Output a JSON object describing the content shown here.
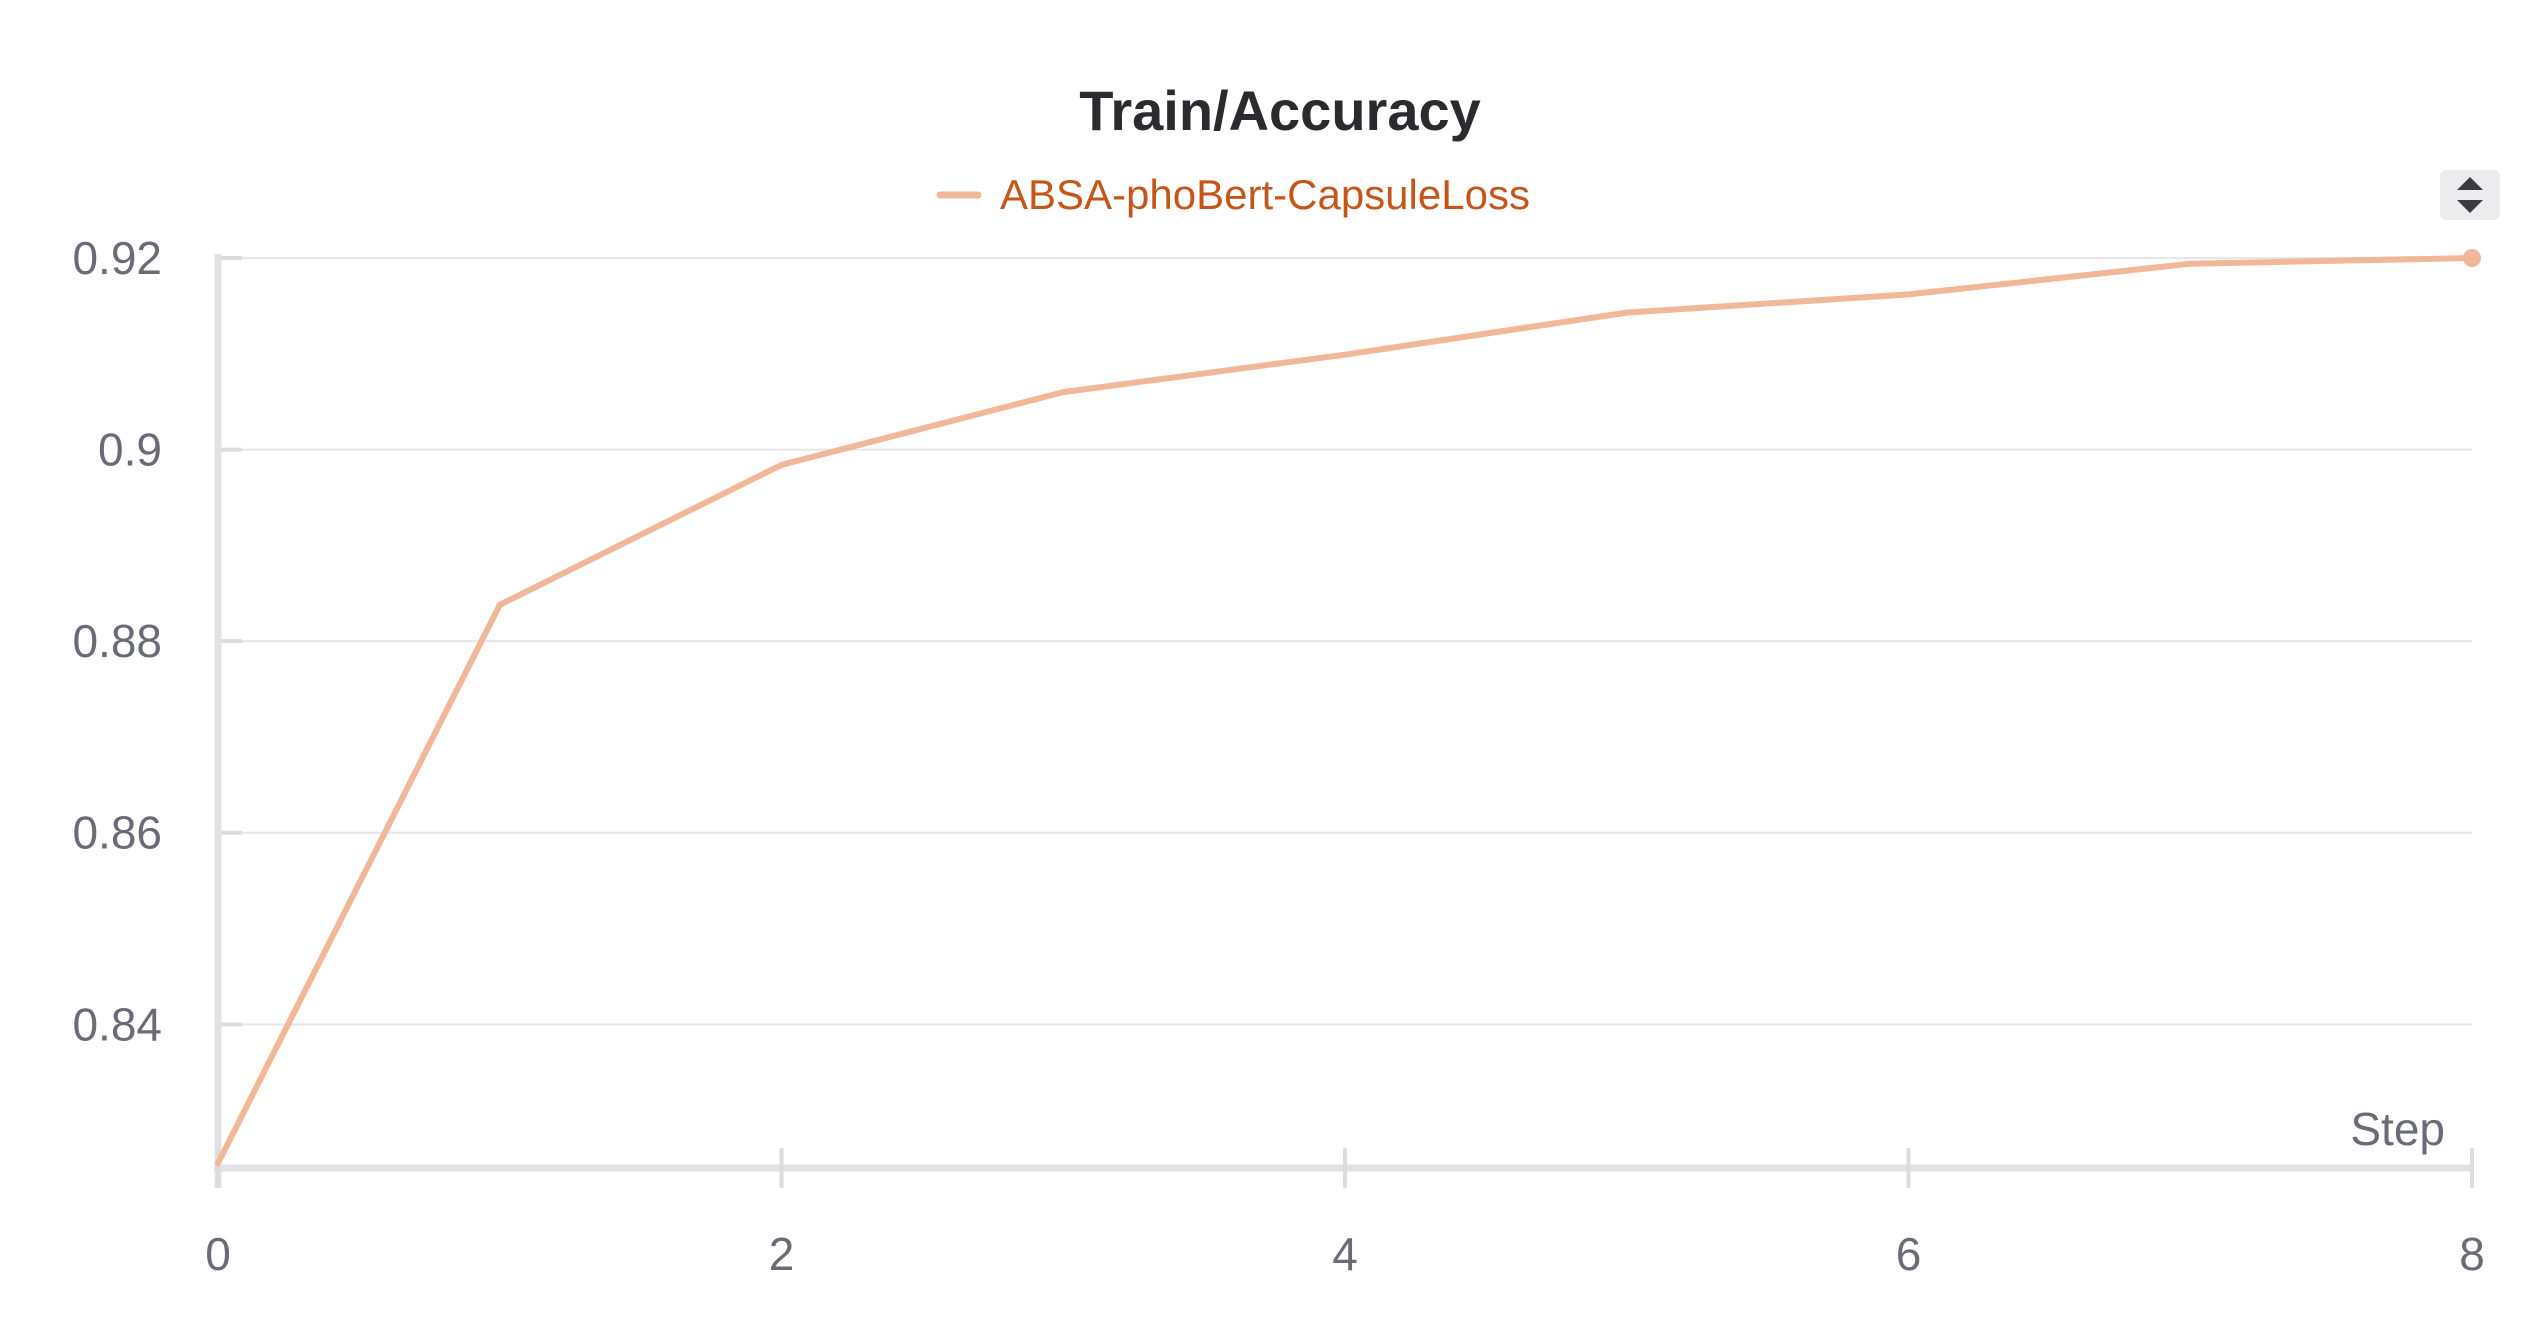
{
  "chart_data": {
    "type": "line",
    "title": "Train/Accuracy",
    "xlabel": "Step",
    "ylabel": "",
    "xlim": [
      0,
      8
    ],
    "ylim": [
      0.825,
      0.92
    ],
    "x_ticks": [
      0,
      2,
      4,
      6,
      8
    ],
    "y_ticks": [
      0.84,
      0.86,
      0.88,
      0.9,
      0.92
    ],
    "y_tick_labels": [
      "0.84",
      "0.86",
      "0.88",
      "0.9",
      "0.92"
    ],
    "grid": true,
    "legend_position": "top-center",
    "series": [
      {
        "name": "ABSA-phoBert-CapsuleLoss",
        "color": "#f0b898",
        "x": [
          0,
          1,
          2,
          3,
          4,
          5,
          6,
          7,
          8
        ],
        "y": [
          0.8255,
          0.8838,
          0.8984,
          0.906,
          0.9099,
          0.9143,
          0.9162,
          0.9194,
          0.92
        ]
      }
    ]
  },
  "controls": {
    "sort_icon": "sort-updown-icon"
  }
}
